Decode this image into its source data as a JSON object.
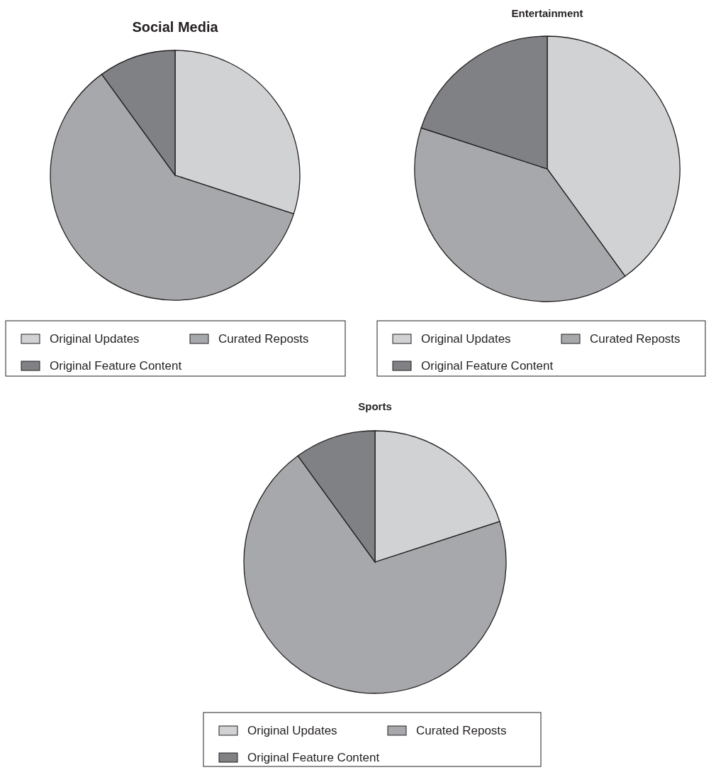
{
  "chart_data": [
    {
      "type": "pie",
      "title": "Social Media",
      "categories": [
        "Original Updates",
        "Curated Reposts",
        "Original Feature Content"
      ],
      "values": [
        30,
        60,
        10
      ],
      "colors": [
        "#d1d2d4",
        "#a7a8ab",
        "#808185"
      ],
      "legend": "bottom"
    },
    {
      "type": "pie",
      "title": "Entertainment",
      "categories": [
        "Original Updates",
        "Curated Reposts",
        "Original Feature Content"
      ],
      "values": [
        40,
        40,
        20
      ],
      "colors": [
        "#d1d2d4",
        "#a7a8ab",
        "#808185"
      ],
      "legend": "bottom"
    },
    {
      "type": "pie",
      "title": "Sports",
      "categories": [
        "Original Updates",
        "Curated Reposts",
        "Original Feature Content"
      ],
      "values": [
        20,
        70,
        10
      ],
      "colors": [
        "#d1d2d4",
        "#a7a8ab",
        "#808185"
      ],
      "legend": "bottom"
    }
  ]
}
